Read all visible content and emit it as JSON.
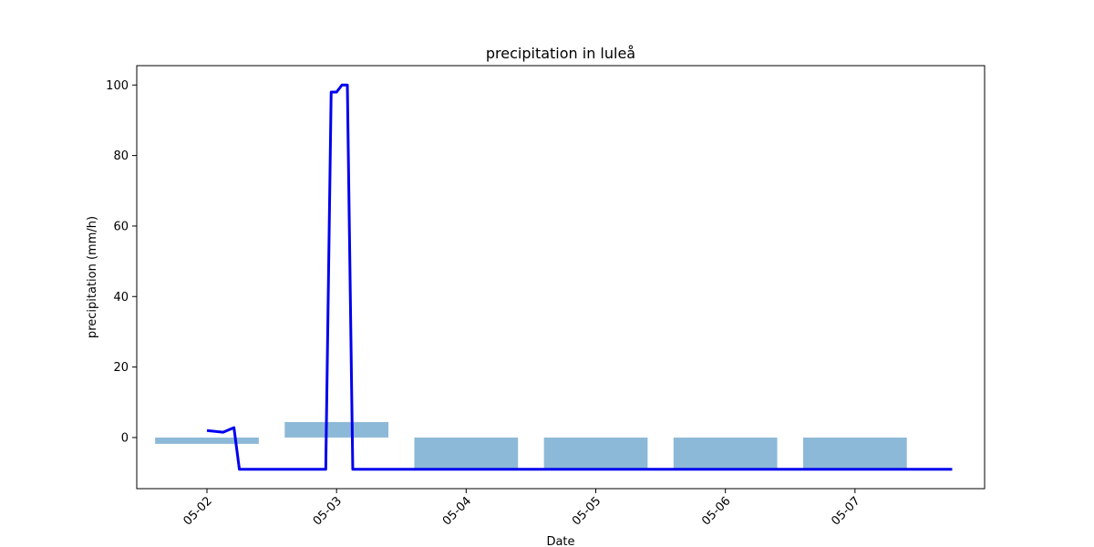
{
  "chart_data": {
    "type": "bar",
    "title": "precipitation in luleå",
    "xlabel": "Date",
    "ylabel": "precipitation (mm/h)",
    "x_axis": {
      "type": "date",
      "range": [
        "2024-05-01T11:00",
        "2024-05-08T00:00"
      ],
      "ticks": [
        {
          "date": "2024-05-02",
          "label": "05-02"
        },
        {
          "date": "2024-05-03",
          "label": "05-03"
        },
        {
          "date": "2024-05-04",
          "label": "05-04"
        },
        {
          "date": "2024-05-05",
          "label": "05-05"
        },
        {
          "date": "2024-05-06",
          "label": "05-06"
        },
        {
          "date": "2024-05-07",
          "label": "05-07"
        }
      ],
      "tick_rotation": 45
    },
    "y_axis": {
      "ylim": [
        -14.5,
        105.5
      ],
      "ticks": [
        0,
        20,
        40,
        60,
        80,
        100
      ]
    },
    "grid": false,
    "series": [
      {
        "kind": "bar",
        "color": "#8db9d8",
        "bars": [
          {
            "date": "2024-05-02",
            "bottom": -1.8,
            "top": 0
          },
          {
            "date": "2024-05-03",
            "bottom": 0,
            "top": 4.4
          },
          {
            "date": "2024-05-04",
            "bottom": -9,
            "top": 0
          },
          {
            "date": "2024-05-05",
            "bottom": -9,
            "top": 0
          },
          {
            "date": "2024-05-06",
            "bottom": -9,
            "top": 0
          },
          {
            "date": "2024-05-07",
            "bottom": -9,
            "top": 0
          }
        ]
      },
      {
        "kind": "line",
        "color": "#0000ee",
        "points": [
          {
            "x": "2024-05-02T00:00",
            "y": 2.0
          },
          {
            "x": "2024-05-02T03:00",
            "y": 1.5
          },
          {
            "x": "2024-05-02T05:00",
            "y": 2.8
          },
          {
            "x": "2024-05-02T06:00",
            "y": -9
          },
          {
            "x": "2024-05-02T22:00",
            "y": -9
          },
          {
            "x": "2024-05-02T23:00",
            "y": 98
          },
          {
            "x": "2024-05-03T00:00",
            "y": 98
          },
          {
            "x": "2024-05-03T01:00",
            "y": 100
          },
          {
            "x": "2024-05-03T02:00",
            "y": 100
          },
          {
            "x": "2024-05-03T03:00",
            "y": -9
          },
          {
            "x": "2024-05-07T18:00",
            "y": -9
          }
        ]
      }
    ]
  }
}
